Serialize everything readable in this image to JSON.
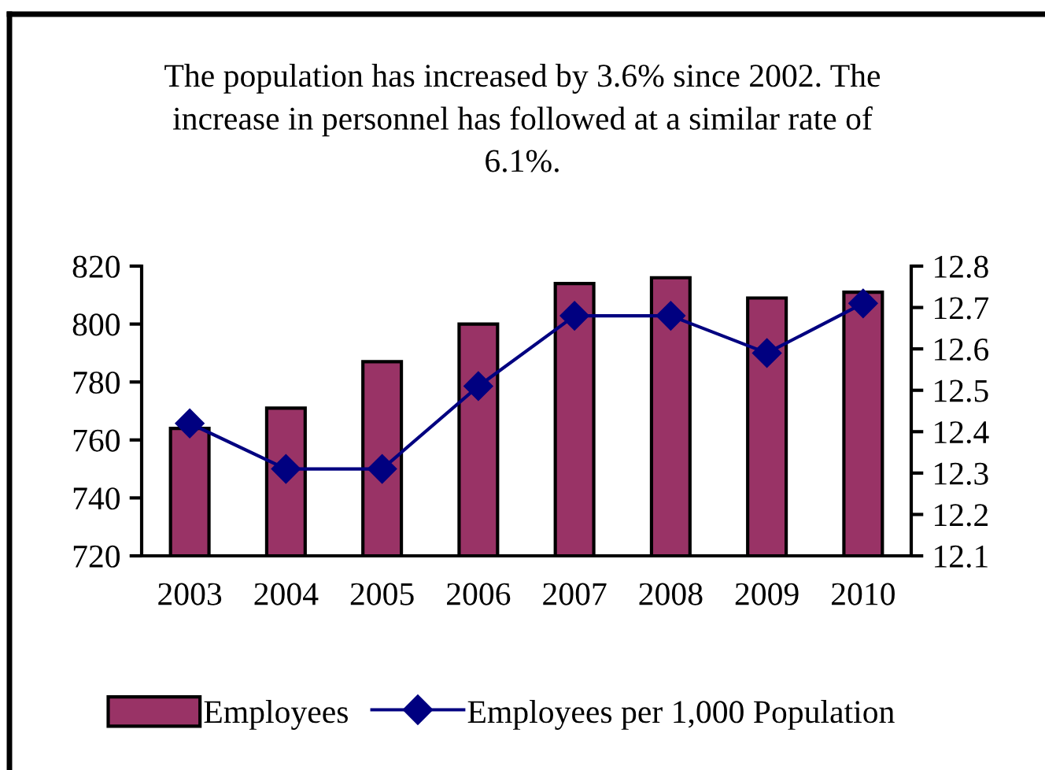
{
  "chart_data": {
    "type": "bar",
    "title": "The population has increased by 3.6% since 2002. The\nincrease in personnel has followed at a similar rate of\n6.1%.",
    "categories": [
      "2003",
      "2004",
      "2005",
      "2006",
      "2007",
      "2008",
      "2009",
      "2010"
    ],
    "series": [
      {
        "name": "Employees",
        "color": "#993366",
        "values": [
          764,
          771,
          787,
          800,
          814,
          816,
          809,
          811
        ]
      },
      {
        "name": "Employees per 1,000 Population",
        "type": "line",
        "axis": "y2",
        "color": "#000080",
        "values": [
          12.42,
          12.31,
          12.31,
          12.51,
          12.68,
          12.68,
          12.59,
          12.71
        ]
      }
    ],
    "ylim": [
      720,
      820
    ],
    "yticks": [
      720,
      740,
      760,
      780,
      800,
      820
    ],
    "y2lim": [
      12.1,
      12.8
    ],
    "y2ticks": [
      12.1,
      12.2,
      12.3,
      12.4,
      12.5,
      12.6,
      12.7,
      12.8
    ],
    "marker": "diamond",
    "legend": "bottom"
  }
}
